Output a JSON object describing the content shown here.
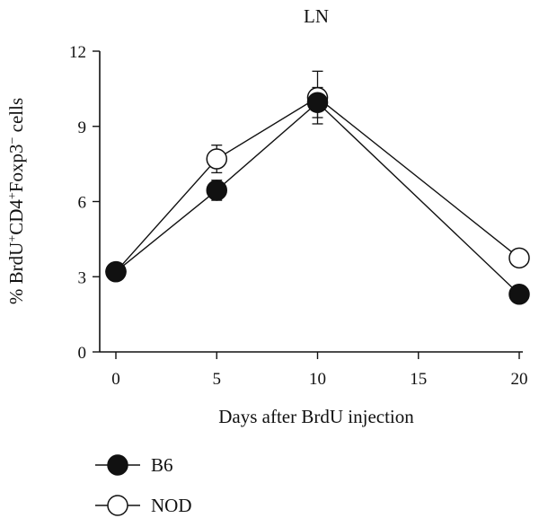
{
  "chart_data": {
    "type": "line",
    "title": "LN",
    "xlabel": "Days after BrdU injection",
    "ylabel_parts": [
      "% BrdU",
      "+",
      "CD4",
      "+",
      "Foxp3",
      "−",
      " cells"
    ],
    "xlim": [
      0,
      20
    ],
    "ylim": [
      0,
      12
    ],
    "xticks": [
      0,
      5,
      10,
      15,
      20
    ],
    "yticks": [
      0,
      3,
      6,
      9,
      12
    ],
    "legend_position": "bottom-left",
    "series": [
      {
        "name": "B6",
        "marker": "filled-circle",
        "x": [
          0,
          5,
          10,
          20
        ],
        "y": [
          3.2,
          6.45,
          9.95,
          2.3
        ],
        "err": [
          0.15,
          0.4,
          0.6,
          0.15
        ]
      },
      {
        "name": "NOD",
        "marker": "open-circle",
        "x": [
          0,
          5,
          10,
          20
        ],
        "y": [
          3.2,
          7.7,
          10.15,
          3.75
        ],
        "err": [
          0.15,
          0.55,
          1.05,
          0.15
        ]
      }
    ]
  }
}
